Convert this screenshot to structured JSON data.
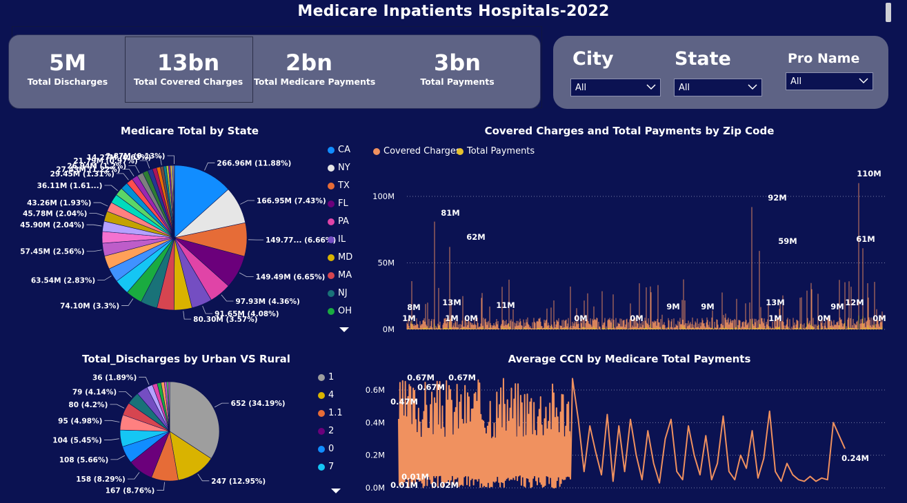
{
  "page": {
    "title": "Medicare Inpatients Hospitals-2022"
  },
  "kpis": [
    {
      "value": "5M",
      "label": "Total Discharges"
    },
    {
      "value": "13bn",
      "label": "Total Covered Charges"
    },
    {
      "value": "2bn",
      "label": "Total Medicare Payments"
    },
    {
      "value": "3bn",
      "label": "Total Payments"
    }
  ],
  "filters": [
    {
      "label": "City",
      "value": "All"
    },
    {
      "label": "State",
      "value": "All"
    },
    {
      "label": "Pro Name",
      "value": "All"
    }
  ],
  "chart_data": [
    {
      "type": "pie",
      "title": "Medicare Total by State",
      "legend_placement": "right",
      "legend": [
        {
          "name": "CA",
          "color": "#118dff"
        },
        {
          "name": "NY",
          "color": "#e6e6e6"
        },
        {
          "name": "TX",
          "color": "#e66c37"
        },
        {
          "name": "FL",
          "color": "#6b007b"
        },
        {
          "name": "PA",
          "color": "#e044a7"
        },
        {
          "name": "IL",
          "color": "#744ec2"
        },
        {
          "name": "MD",
          "color": "#d9b300"
        },
        {
          "name": "MA",
          "color": "#d64550"
        },
        {
          "name": "NJ",
          "color": "#197278"
        },
        {
          "name": "OH",
          "color": "#1aab40"
        }
      ],
      "slices": [
        {
          "label": "266.96M (11.88%)",
          "value": 266.96,
          "color": "#118dff"
        },
        {
          "label": "166.95M (7.43%)",
          "value": 166.95,
          "color": "#e6e6e6"
        },
        {
          "label": "149.77... (6.66%)",
          "value": 149.77,
          "color": "#e66c37"
        },
        {
          "label": "149.49M (6.65%)",
          "value": 149.49,
          "color": "#6b007b"
        },
        {
          "label": "97.93M (4.36%)",
          "value": 97.93,
          "color": "#e044a7"
        },
        {
          "label": "91.65M (4.08%)",
          "value": 91.65,
          "color": "#744ec2"
        },
        {
          "label": "80.30M (3.57%)",
          "value": 80.3,
          "color": "#d9b300"
        },
        {
          "label": "",
          "value": 76,
          "color": "#d64550"
        },
        {
          "label": "",
          "value": 75,
          "color": "#197278"
        },
        {
          "label": "74.10M (3.3%)",
          "value": 74.1,
          "color": "#1aab40"
        },
        {
          "label": "",
          "value": 68,
          "color": "#15c6f4"
        },
        {
          "label": "63.54M (2.83%)",
          "value": 63.54,
          "color": "#4092ff"
        },
        {
          "label": "",
          "value": 60,
          "color": "#ffa058"
        },
        {
          "label": "57.45M (2.56%)",
          "value": 57.45,
          "color": "#be5dc9"
        },
        {
          "label": "",
          "value": 52,
          "color": "#f472d0"
        },
        {
          "label": "45.90M (2.04%)",
          "value": 45.9,
          "color": "#b5a1ff"
        },
        {
          "label": "45.78M (2.04%)",
          "value": 45.78,
          "color": "#c4a200"
        },
        {
          "label": "43.26M (1.93%)",
          "value": 43.26,
          "color": "#ff8080"
        },
        {
          "label": "",
          "value": 40,
          "color": "#00dbbc"
        },
        {
          "label": "36.11M (1.61...)",
          "value": 36.11,
          "color": "#5bd667"
        },
        {
          "label": "",
          "value": 33,
          "color": "#0091d5"
        },
        {
          "label": "29.45M (1.31%)",
          "value": 29.45,
          "color": "#ff4d4d"
        },
        {
          "label": "27.43M (1.22%)",
          "value": 27.43,
          "color": "#9c27b0"
        },
        {
          "label": "26.94M (1.2%)",
          "value": 26.94,
          "color": "#7f7f7f"
        },
        {
          "label": "",
          "value": 24,
          "color": "#2e7d32"
        },
        {
          "label": "21.79M (0.97%)",
          "value": 21.79,
          "color": "#283593"
        },
        {
          "label": "",
          "value": 19,
          "color": "#ad1457"
        },
        {
          "label": "",
          "value": 17,
          "color": "#ef6c00"
        },
        {
          "label": "14.27M (0.63%)",
          "value": 14.27,
          "color": "#6d4c41"
        },
        {
          "label": "",
          "value": 12,
          "color": "#00838f"
        },
        {
          "label": "",
          "value": 10,
          "color": "#c0ca33"
        },
        {
          "label": "",
          "value": 8,
          "color": "#8e24aa"
        },
        {
          "label": "",
          "value": 7,
          "color": "#fdd835"
        },
        {
          "label": "",
          "value": 5,
          "color": "#e0e0e0"
        },
        {
          "label": "",
          "value": 4,
          "color": "#ffcc80"
        },
        {
          "label": "2.87M (0.13%)",
          "value": 2.87,
          "color": "#f5f5dc"
        }
      ]
    },
    {
      "type": "bar",
      "title": "Covered Charges and Total Payments by Zip Code",
      "legend_placement": "top-left",
      "series": [
        {
          "name": "Covered Charges",
          "color": "#f0915f"
        },
        {
          "name": "Total Payments",
          "color": "#e6c12e"
        }
      ],
      "y_ticks": [
        "0M",
        "50M",
        "100M"
      ],
      "ylim": [
        0,
        100
      ],
      "data_labels": [
        "110M",
        "92M",
        "81M",
        "62M",
        "61M",
        "59M",
        "13M",
        "13M",
        "12M",
        "11M",
        "9M",
        "9M",
        "9M",
        "8M",
        "1M",
        "1M",
        "1M",
        "0M",
        "0M",
        "0M",
        "0M",
        "0M"
      ],
      "peaks": [
        {
          "label": "81M",
          "value": 81
        },
        {
          "label": "62M",
          "value": 62
        },
        {
          "label": "92M",
          "value": 92
        },
        {
          "label": "59M",
          "value": 59
        },
        {
          "label": "110M",
          "value": 110
        },
        {
          "label": "61M",
          "value": 61
        }
      ]
    },
    {
      "type": "pie",
      "title": "Total_Discharges by Urban VS Rural",
      "legend_placement": "right",
      "legend": [
        {
          "name": "1",
          "color": "#9e9e9e"
        },
        {
          "name": "4",
          "color": "#d9b300"
        },
        {
          "name": "1.1",
          "color": "#e66c37"
        },
        {
          "name": "2",
          "color": "#6b007b"
        },
        {
          "name": "0",
          "color": "#118dff"
        },
        {
          "name": "7",
          "color": "#15c6f4"
        }
      ],
      "slices": [
        {
          "label": "652 (34.19%)",
          "value": 652,
          "color": "#9e9e9e"
        },
        {
          "label": "247 (12.95%)",
          "value": 247,
          "color": "#d9b300"
        },
        {
          "label": "167 (8.76%)",
          "value": 167,
          "color": "#e66c37"
        },
        {
          "label": "158 (8.29%)",
          "value": 158,
          "color": "#6b007b"
        },
        {
          "label": "108 (5.66%)",
          "value": 108,
          "color": "#118dff"
        },
        {
          "label": "104 (5.45%)",
          "value": 104,
          "color": "#15c6f4"
        },
        {
          "label": "95 (4.98%)",
          "value": 95,
          "color": "#ff8080"
        },
        {
          "label": "80 (4.2%)",
          "value": 80,
          "color": "#d64550"
        },
        {
          "label": "79 (4.14%)",
          "value": 79,
          "color": "#197278"
        },
        {
          "label": "",
          "value": 70,
          "color": "#744ec2"
        },
        {
          "label": "36 (1.89%)",
          "value": 36,
          "color": "#b5a1ff"
        },
        {
          "label": "",
          "value": 30,
          "color": "#e044a7"
        },
        {
          "label": "",
          "value": 25,
          "color": "#1aab40"
        },
        {
          "label": "",
          "value": 20,
          "color": "#ffa058"
        },
        {
          "label": "",
          "value": 15,
          "color": "#be5dc9"
        },
        {
          "label": "",
          "value": 10,
          "color": "#5bd667"
        },
        {
          "label": "",
          "value": 8,
          "color": "#f472d0"
        }
      ]
    },
    {
      "type": "line",
      "title": "Average CCN by Medicare Total Payments",
      "series": [
        {
          "color": "#f0915f"
        }
      ],
      "y_ticks": [
        "0.0M",
        "0.2M",
        "0.4M",
        "0.6M"
      ],
      "ylim": [
        0,
        0.7
      ],
      "data_labels": [
        "0.67M",
        "0.67M",
        "0.67M",
        "0.47M",
        "0.24M",
        "0.01M",
        "0.01M",
        "0.02M"
      ],
      "tail_points": [
        0.42,
        0.1,
        0.38,
        0.22,
        0.08,
        0.45,
        0.04,
        0.38,
        0.1,
        0.42,
        0.2,
        0.05,
        0.35,
        0.15,
        0.03,
        0.3,
        0.42,
        0.1,
        0.05,
        0.38,
        0.2,
        0.08,
        0.32,
        0.05,
        0.15,
        0.44,
        0.1,
        0.05,
        0.2,
        0.12,
        0.35,
        0.06,
        0.18,
        0.47,
        0.1,
        0.04,
        0.15,
        0.08,
        0.05,
        0.04,
        0.07,
        0.04,
        0.06,
        0.05,
        0.4,
        0.32,
        0.24
      ]
    }
  ]
}
